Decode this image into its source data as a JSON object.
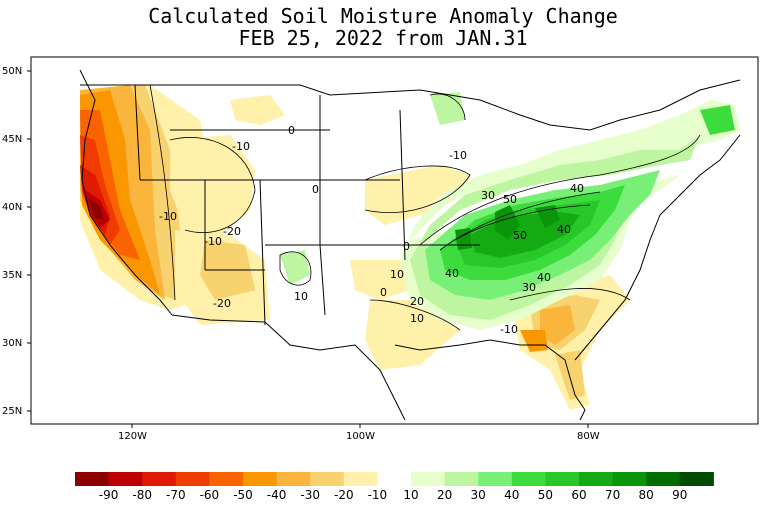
{
  "title": {
    "line1": "Calculated Soil Moisture Anomaly Change",
    "line2": "FEB 25, 2022 from JAN.31"
  },
  "lat_labels": [
    "50N",
    "45N",
    "40N",
    "35N",
    "30N",
    "25N"
  ],
  "lon_labels": [
    "120W",
    "100W",
    "80W"
  ],
  "contour_labels": [
    "0",
    "-10",
    "-10",
    "-10",
    "-20",
    "-20",
    "0",
    "-10",
    "10",
    "0",
    "10",
    "0",
    "20",
    "10",
    "-10",
    "30",
    "50",
    "40",
    "50",
    "40",
    "40",
    "30",
    "40"
  ],
  "legend": {
    "labels": [
      "-90",
      "-80",
      "-70",
      "-60",
      "-50",
      "-40",
      "-30",
      "-20",
      "-10",
      "10",
      "20",
      "30",
      "40",
      "50",
      "60",
      "70",
      "80",
      "90"
    ],
    "colors": [
      "#8b0000",
      "#be0000",
      "#e01a00",
      "#f03c00",
      "#fa6400",
      "#fa9600",
      "#fbb43c",
      "#f8d26e",
      "#fff0aa",
      "#ffffff",
      "#e6ffcd",
      "#bef5a0",
      "#78f078",
      "#3cdc3c",
      "#28c828",
      "#14aa14",
      "#0a960a",
      "#006e00",
      "#004b00"
    ]
  },
  "map_colors": {
    "ocean": "#ffffff",
    "frame": "#000000"
  }
}
